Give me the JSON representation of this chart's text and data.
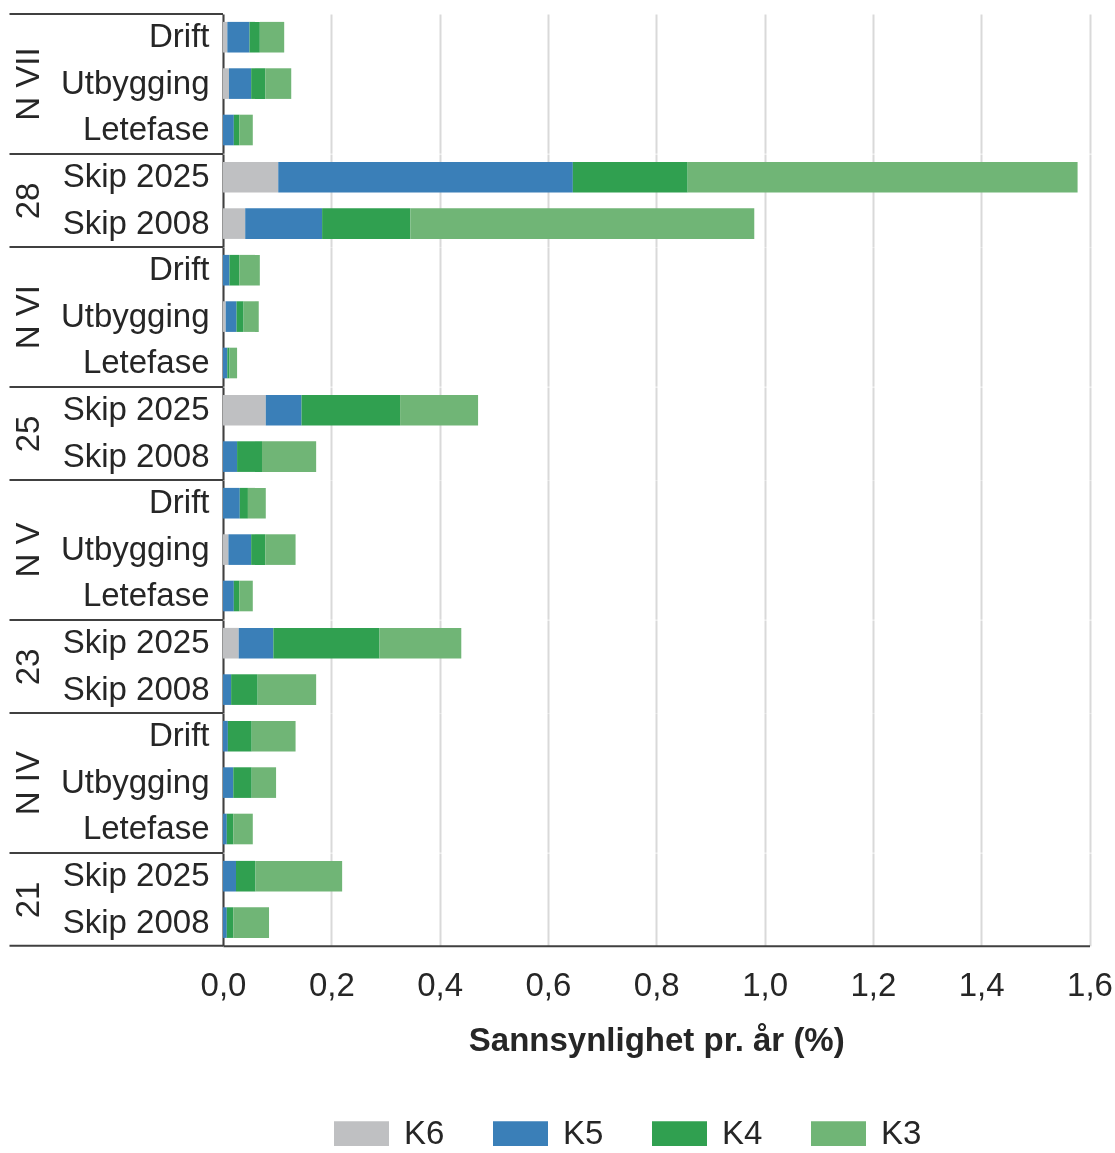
{
  "chart_data": [
    {
      "type": "bar",
      "orientation": "horizontal",
      "stacked": true,
      "ylabel": "N VII",
      "categories": [
        "Drift",
        "Utbygging",
        "Letefase"
      ],
      "series": [
        {
          "color": "#bfc0c2",
          "values": [
            0.008,
            0.011,
            null
          ]
        },
        {
          "color": "#3a7fb8",
          "values": [
            0.041,
            0.041,
            0.02
          ]
        },
        {
          "color": "#30a050",
          "values": [
            0.019,
            0.026,
            0.01
          ]
        },
        {
          "color": "#70b576",
          "values": [
            0.045,
            0.048,
            0.025
          ]
        }
      ],
      "xlim": [
        0,
        1.6
      ],
      "xticks": [
        {
          "value": 0,
          "label": null
        },
        {
          "value": 0.2,
          "label": null
        },
        {
          "value": 0.4,
          "label": null
        },
        {
          "value": 0.6,
          "label": null
        },
        {
          "value": 0.8,
          "label": null
        },
        {
          "value": 1,
          "label": null
        },
        {
          "value": 1.2,
          "label": null
        },
        {
          "value": 1.4,
          "label": null
        },
        {
          "value": 1.6,
          "label": null
        }
      ],
      "grid": "x",
      "tick_labels": "y"
    },
    {
      "type": "bar",
      "orientation": "horizontal",
      "stacked": true,
      "ylabel": "28",
      "categories": [
        "Skip 2025",
        "Skip 2008"
      ],
      "series": [
        {
          "color": "#bfc0c2",
          "values": [
            0.102,
            0.041
          ]
        },
        {
          "color": "#3a7fb8",
          "values": [
            0.544,
            0.142
          ]
        },
        {
          "color": "#30a050",
          "values": [
            0.212,
            0.163
          ]
        },
        {
          "color": "#70b576",
          "values": [
            0.72,
            0.635
          ]
        }
      ],
      "xlim": [
        0,
        1.6
      ],
      "xticks": [
        {
          "value": 0,
          "label": null
        },
        {
          "value": 0.2,
          "label": null
        },
        {
          "value": 0.4,
          "label": null
        },
        {
          "value": 0.6,
          "label": null
        },
        {
          "value": 0.8,
          "label": null
        },
        {
          "value": 1,
          "label": null
        },
        {
          "value": 1.2,
          "label": null
        },
        {
          "value": 1.4,
          "label": null
        },
        {
          "value": 1.6,
          "label": null
        }
      ],
      "grid": "x",
      "tick_labels": "y"
    },
    {
      "type": "bar",
      "orientation": "horizontal",
      "stacked": true,
      "ylabel": "N VI",
      "categories": [
        "Drift",
        "Utbygging",
        "Letefase"
      ],
      "series": [
        {
          "color": "#bfc0c2",
          "values": [
            null,
            0.005,
            null
          ]
        },
        {
          "color": "#3a7fb8",
          "values": [
            0.012,
            0.02,
            0.008
          ]
        },
        {
          "color": "#30a050",
          "values": [
            0.018,
            0.013,
            0.004
          ]
        },
        {
          "color": "#70b576",
          "values": [
            0.038,
            0.028,
            0.014
          ]
        }
      ],
      "xlim": [
        0,
        1.6
      ],
      "xticks": [
        {
          "value": 0,
          "label": null
        },
        {
          "value": 0.2,
          "label": null
        },
        {
          "value": 0.4,
          "label": null
        },
        {
          "value": 0.6,
          "label": null
        },
        {
          "value": 0.8,
          "label": null
        },
        {
          "value": 1,
          "label": null
        },
        {
          "value": 1.2,
          "label": null
        },
        {
          "value": 1.4,
          "label": null
        },
        {
          "value": 1.6,
          "label": null
        }
      ],
      "grid": "x",
      "tick_labels": "y"
    },
    {
      "type": "bar",
      "orientation": "horizontal",
      "stacked": true,
      "ylabel": "25",
      "categories": [
        "Skip 2025",
        "Skip 2008"
      ],
      "series": [
        {
          "color": "#bfc0c2",
          "values": [
            0.079,
            null
          ]
        },
        {
          "color": "#3a7fb8",
          "values": [
            0.066,
            0.026
          ]
        },
        {
          "color": "#30a050",
          "values": [
            0.182,
            0.046
          ]
        },
        {
          "color": "#70b576",
          "values": [
            0.144,
            0.1
          ]
        }
      ],
      "xlim": [
        0,
        1.6
      ],
      "xticks": [
        {
          "value": 0,
          "label": null
        },
        {
          "value": 0.2,
          "label": null
        },
        {
          "value": 0.4,
          "label": null
        },
        {
          "value": 0.6,
          "label": null
        },
        {
          "value": 0.8,
          "label": null
        },
        {
          "value": 1,
          "label": null
        },
        {
          "value": 1.2,
          "label": null
        },
        {
          "value": 1.4,
          "label": null
        },
        {
          "value": 1.6,
          "label": null
        }
      ],
      "grid": "x",
      "tick_labels": "y"
    },
    {
      "type": "bar",
      "orientation": "horizontal",
      "stacked": true,
      "ylabel": "N V",
      "categories": [
        "Drift",
        "Utbygging",
        "Letefase"
      ],
      "series": [
        {
          "color": "#bfc0c2",
          "values": [
            null,
            0.01,
            null
          ]
        },
        {
          "color": "#3a7fb8",
          "values": [
            0.031,
            0.042,
            0.02
          ]
        },
        {
          "color": "#30a050",
          "values": [
            0.015,
            0.026,
            0.01
          ]
        },
        {
          "color": "#70b576",
          "values": [
            0.033,
            0.056,
            0.025
          ]
        }
      ],
      "xlim": [
        0,
        1.6
      ],
      "xticks": [
        {
          "value": 0,
          "label": null
        },
        {
          "value": 0.2,
          "label": null
        },
        {
          "value": 0.4,
          "label": null
        },
        {
          "value": 0.6,
          "label": null
        },
        {
          "value": 0.8,
          "label": null
        },
        {
          "value": 1,
          "label": null
        },
        {
          "value": 1.2,
          "label": null
        },
        {
          "value": 1.4,
          "label": null
        },
        {
          "value": 1.6,
          "label": null
        }
      ],
      "grid": "x",
      "tick_labels": "y"
    },
    {
      "type": "bar",
      "orientation": "horizontal",
      "stacked": true,
      "ylabel": "23",
      "categories": [
        "Skip 2025",
        "Skip 2008"
      ],
      "series": [
        {
          "color": "#bfc0c2",
          "values": [
            0.029,
            null
          ]
        },
        {
          "color": "#3a7fb8",
          "values": [
            0.064,
            0.015
          ]
        },
        {
          "color": "#30a050",
          "values": [
            0.196,
            0.049
          ]
        },
        {
          "color": "#70b576",
          "values": [
            0.151,
            0.108
          ]
        }
      ],
      "xlim": [
        0,
        1.6
      ],
      "xticks": [
        {
          "value": 0,
          "label": null
        },
        {
          "value": 0.2,
          "label": null
        },
        {
          "value": 0.4,
          "label": null
        },
        {
          "value": 0.6,
          "label": null
        },
        {
          "value": 0.8,
          "label": null
        },
        {
          "value": 1,
          "label": null
        },
        {
          "value": 1.2,
          "label": null
        },
        {
          "value": 1.4,
          "label": null
        },
        {
          "value": 1.6,
          "label": null
        }
      ],
      "grid": "x",
      "tick_labels": "y"
    },
    {
      "type": "bar",
      "orientation": "horizontal",
      "stacked": true,
      "ylabel": "N IV",
      "categories": [
        "Drift",
        "Utbygging",
        "Letefase"
      ],
      "series": [
        {
          "color": "#bfc0c2",
          "values": [
            null,
            null,
            null
          ]
        },
        {
          "color": "#3a7fb8",
          "values": [
            0.009,
            0.019,
            0.007
          ]
        },
        {
          "color": "#30a050",
          "values": [
            0.044,
            0.034,
            0.012
          ]
        },
        {
          "color": "#70b576",
          "values": [
            0.081,
            0.045,
            0.036
          ]
        }
      ],
      "xlim": [
        0,
        1.6
      ],
      "xticks": [
        {
          "value": 0,
          "label": null
        },
        {
          "value": 0.2,
          "label": null
        },
        {
          "value": 0.4,
          "label": null
        },
        {
          "value": 0.6,
          "label": null
        },
        {
          "value": 0.8,
          "label": null
        },
        {
          "value": 1,
          "label": null
        },
        {
          "value": 1.2,
          "label": null
        },
        {
          "value": 1.4,
          "label": null
        },
        {
          "value": 1.6,
          "label": null
        }
      ],
      "grid": "x",
      "tick_labels": "y"
    },
    {
      "type": "bar",
      "orientation": "horizontal",
      "stacked": true,
      "ylabel": "21",
      "xlabel": "Sannsynlighet pr. år (%)",
      "categories": [
        "Skip 2025",
        "Skip 2008"
      ],
      "series": [
        {
          "name": "K6",
          "color": "#bfc0c2",
          "values": [
            null,
            null
          ]
        },
        {
          "name": "K5",
          "color": "#3a7fb8",
          "values": [
            0.024,
            0.007
          ]
        },
        {
          "name": "K4",
          "color": "#30a050",
          "values": [
            0.036,
            0.012
          ]
        },
        {
          "name": "K3",
          "color": "#70b576",
          "values": [
            0.16,
            0.066
          ]
        }
      ],
      "xlim": [
        0,
        1.6
      ],
      "xticks": [
        {
          "value": 0,
          "label": "0,0"
        },
        {
          "value": 0.2,
          "label": "0,2"
        },
        {
          "value": 0.4,
          "label": "0,4"
        },
        {
          "value": 0.6,
          "label": "0,6"
        },
        {
          "value": 0.8,
          "label": "0,8"
        },
        {
          "value": 1,
          "label": "1,0"
        },
        {
          "value": 1.2,
          "label": "1,2"
        },
        {
          "value": 1.4,
          "label": "1,4"
        },
        {
          "value": 1.6,
          "label": "1,6"
        }
      ],
      "grid": "x",
      "legend": "bottom"
    }
  ]
}
